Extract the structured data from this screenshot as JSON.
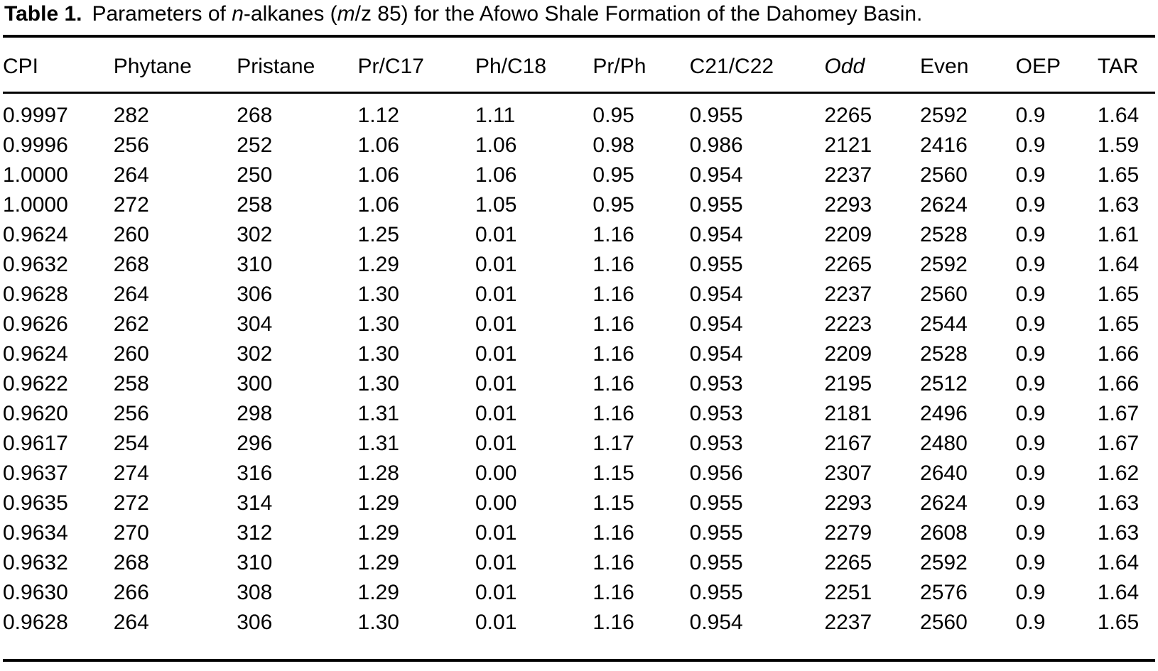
{
  "caption": {
    "label": "Table 1.",
    "parts": [
      "Parameters of ",
      "n",
      "-alkanes (",
      "m",
      "/z 85) for the Afowo Shale Formation of the Dahomey Basin."
    ]
  },
  "table": {
    "columns": [
      "CPI",
      "Phytane",
      "Pristane",
      "Pr/C17",
      "Ph/C18",
      "Pr/Ph",
      "C21/C22",
      "Odd",
      "Even",
      "OEP",
      "TAR"
    ],
    "rows": [
      [
        "0.9997",
        "282",
        "268",
        "1.12",
        "1.11",
        "0.95",
        "0.955",
        "2265",
        "2592",
        "0.9",
        "1.64"
      ],
      [
        "0.9996",
        "256",
        "252",
        "1.06",
        "1.06",
        "0.98",
        "0.986",
        "2121",
        "2416",
        "0.9",
        "1.59"
      ],
      [
        "1.0000",
        "264",
        "250",
        "1.06",
        "1.06",
        "0.95",
        "0.954",
        "2237",
        "2560",
        "0.9",
        "1.65"
      ],
      [
        "1.0000",
        "272",
        "258",
        "1.06",
        "1.05",
        "0.95",
        "0.955",
        "2293",
        "2624",
        "0.9",
        "1.63"
      ],
      [
        "0.9624",
        "260",
        "302",
        "1.25",
        "0.01",
        "1.16",
        "0.954",
        "2209",
        "2528",
        "0.9",
        "1.61"
      ],
      [
        "0.9632",
        "268",
        "310",
        "1.29",
        "0.01",
        "1.16",
        "0.955",
        "2265",
        "2592",
        "0.9",
        "1.64"
      ],
      [
        "0.9628",
        "264",
        "306",
        "1.30",
        "0.01",
        "1.16",
        "0.954",
        "2237",
        "2560",
        "0.9",
        "1.65"
      ],
      [
        "0.9626",
        "262",
        "304",
        "1.30",
        "0.01",
        "1.16",
        "0.954",
        "2223",
        "2544",
        "0.9",
        "1.65"
      ],
      [
        "0.9624",
        "260",
        "302",
        "1.30",
        "0.01",
        "1.16",
        "0.954",
        "2209",
        "2528",
        "0.9",
        "1.66"
      ],
      [
        "0.9622",
        "258",
        "300",
        "1.30",
        "0.01",
        "1.16",
        "0.953",
        "2195",
        "2512",
        "0.9",
        "1.66"
      ],
      [
        "0.9620",
        "256",
        "298",
        "1.31",
        "0.01",
        "1.16",
        "0.953",
        "2181",
        "2496",
        "0.9",
        "1.67"
      ],
      [
        "0.9617",
        "254",
        "296",
        "1.31",
        "0.01",
        "1.17",
        "0.953",
        "2167",
        "2480",
        "0.9",
        "1.67"
      ],
      [
        "0.9637",
        "274",
        "316",
        "1.28",
        "0.00",
        "1.15",
        "0.956",
        "2307",
        "2640",
        "0.9",
        "1.62"
      ],
      [
        "0.9635",
        "272",
        "314",
        "1.29",
        "0.00",
        "1.15",
        "0.955",
        "2293",
        "2624",
        "0.9",
        "1.63"
      ],
      [
        "0.9634",
        "270",
        "312",
        "1.29",
        "0.01",
        "1.16",
        "0.955",
        "2279",
        "2608",
        "0.9",
        "1.63"
      ],
      [
        "0.9632",
        "268",
        "310",
        "1.29",
        "0.01",
        "1.16",
        "0.955",
        "2265",
        "2592",
        "0.9",
        "1.64"
      ],
      [
        "0.9630",
        "266",
        "308",
        "1.29",
        "0.01",
        "1.16",
        "0.955",
        "2251",
        "2576",
        "0.9",
        "1.64"
      ],
      [
        "0.9628",
        "264",
        "306",
        "1.30",
        "0.01",
        "1.16",
        "0.954",
        "2237",
        "2560",
        "0.9",
        "1.65"
      ]
    ]
  },
  "colors": {
    "text": "#000000",
    "background": "#ffffff",
    "rule": "#000000"
  }
}
